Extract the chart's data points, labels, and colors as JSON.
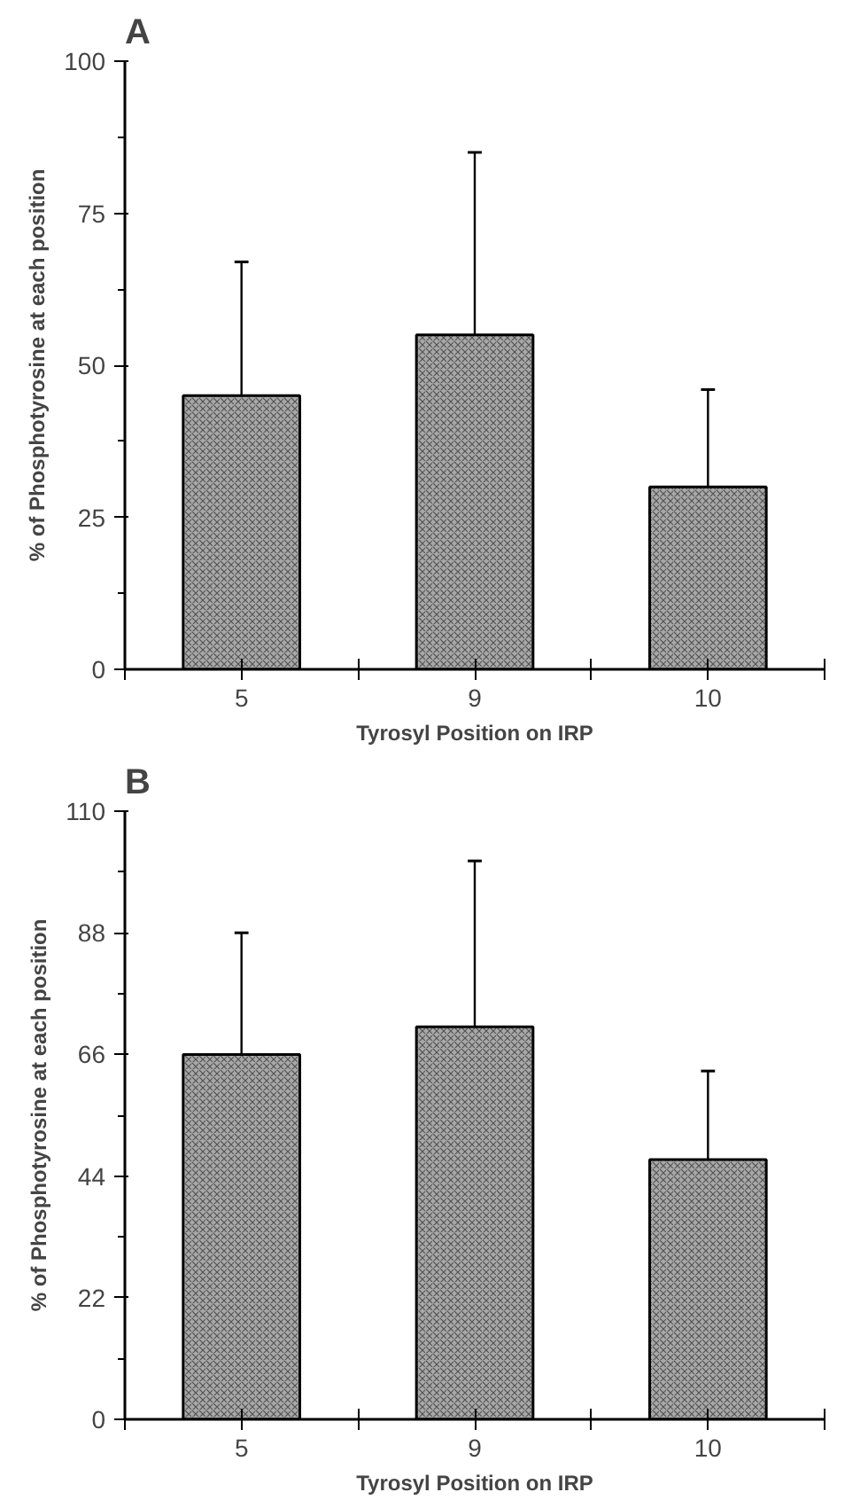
{
  "chart_data": [
    {
      "type": "bar",
      "title": "A",
      "categories": [
        "5",
        "9",
        "10"
      ],
      "values": [
        45,
        55,
        30
      ],
      "errors": [
        [
          45,
          67
        ],
        [
          55,
          85
        ],
        [
          30,
          46
        ]
      ],
      "color": "#a8a8a8",
      "xlabel": "Tyrosyl Position on IRP",
      "ylabel": "% of Phosphotyrosine at each position",
      "ylim": [
        0,
        100
      ],
      "yticks": [
        0,
        25,
        50,
        75,
        100
      ],
      "grid": false
    },
    {
      "type": "bar",
      "title": "B",
      "categories": [
        "5",
        "9",
        "10"
      ],
      "values": [
        66,
        71,
        47
      ],
      "errors": [
        [
          66,
          88
        ],
        [
          71,
          101
        ],
        [
          47,
          63
        ]
      ],
      "color": "#a8a8a8",
      "xlabel": "Tyrosyl Position on IRP",
      "ylabel": "% of Phosphotyrosine at each position",
      "ylim": [
        0,
        110
      ],
      "yticks": [
        0,
        22,
        44,
        66,
        88,
        110
      ],
      "grid": false
    }
  ]
}
